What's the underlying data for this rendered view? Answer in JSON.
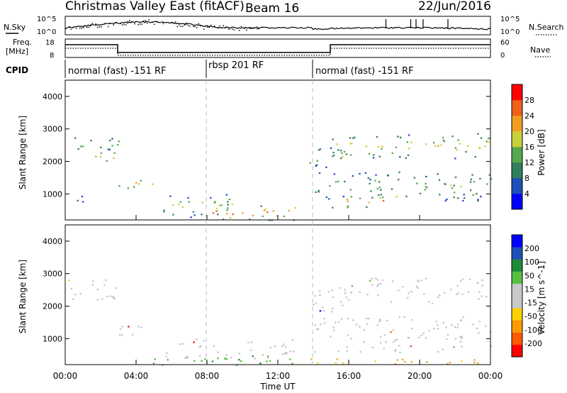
{
  "header": {
    "title": "Christmas Valley East (fitACF)",
    "beam": "Beam 16",
    "date": "22/Jun/2016"
  },
  "noise_panel": {
    "left_label": "N.Sky",
    "right_label": "N.Search",
    "left_ticks": [
      "10^5",
      "10^0"
    ],
    "right_ticks": [
      "10^5",
      "10^0"
    ]
  },
  "freq_panel": {
    "left_label_1": "Freq.",
    "left_label_2": "[MHz]",
    "right_label": "Nave",
    "left_ticks": [
      "18",
      "8"
    ],
    "right_ticks": [
      "60",
      "0"
    ]
  },
  "cpid": {
    "label": "CPID",
    "segments": [
      {
        "text": "normal (fast) -151 RF"
      },
      {
        "text": "rbsp 201 RF"
      },
      {
        "text": "normal (fast) -151 RF"
      }
    ]
  },
  "colors": {
    "power_scale": [
      "#0000ff",
      "#1f4fb8",
      "#2f7f5f",
      "#55a84f",
      "#c8d13a",
      "#f0a020",
      "#f06018",
      "#ff0000"
    ],
    "velocity_scale": [
      "#ff0000",
      "#ff5a00",
      "#ff9a00",
      "#ffd000",
      "#c8c8c8",
      "#c8c8c8",
      "#55c040",
      "#1e8a3a",
      "#1f4fb8",
      "#0000ff"
    ],
    "velocity_main": "#c4c4c4",
    "velocity_green": "#4fbf3a",
    "velocity_orange": "#f0a030"
  },
  "chart_data": [
    {
      "type": "heatmap",
      "name": "Power",
      "xlabel": "",
      "ylabel": "Slant Range [km]",
      "yticks": [
        "1000",
        "2000",
        "3000",
        "4000"
      ],
      "ylim": [
        200,
        4500
      ],
      "colorbar_label": "Power [dB]",
      "colorbar_ticks": [
        "28",
        "24",
        "20",
        "16",
        "12",
        "8",
        "4"
      ],
      "echo_bands": [
        {
          "t_start": 0.0,
          "t_end": 3.0,
          "range_start": 2300,
          "range_end": 2800,
          "level_db": 16
        },
        {
          "t_start": 1.3,
          "t_end": 3.0,
          "range_start": 2000,
          "range_end": 2400,
          "level_db": 24
        },
        {
          "t_start": 3.0,
          "t_end": 5.0,
          "range_start": 1150,
          "range_end": 1550,
          "level_db": 22
        },
        {
          "t_start": 0.0,
          "t_end": 1.0,
          "range_start": 700,
          "range_end": 1100,
          "level_db": 14
        },
        {
          "t_start": 5.5,
          "t_end": 10.0,
          "range_start": 300,
          "range_end": 1000,
          "level_db": 18
        },
        {
          "t_start": 7.0,
          "t_end": 13.0,
          "range_start": 200,
          "range_end": 700,
          "level_db": 26
        },
        {
          "t_start": 13.7,
          "t_end": 15.7,
          "range_start": 1800,
          "range_end": 2500,
          "level_db": 18
        },
        {
          "t_start": 15.0,
          "t_end": 24.0,
          "range_start": 2100,
          "range_end": 2900,
          "level_db": 20
        },
        {
          "t_start": 14.0,
          "t_end": 24.0,
          "range_start": 800,
          "range_end": 1700,
          "level_db": 16
        },
        {
          "t_start": 15.0,
          "t_end": 19.0,
          "range_start": 600,
          "range_end": 1000,
          "level_db": 26
        }
      ]
    },
    {
      "type": "heatmap",
      "name": "Velocity",
      "xlabel": "Time UT",
      "ylabel": "Slant Range [km]",
      "yticks": [
        "1000",
        "2000",
        "3000",
        "4000"
      ],
      "ylim": [
        200,
        4500
      ],
      "xticks": [
        "00:00",
        "04:00",
        "08:00",
        "12:00",
        "16:00",
        "20:00",
        "00:00"
      ],
      "xlim": [
        0,
        24
      ],
      "colorbar_label": "Velocity [m s^-1]",
      "colorbar_ticks": [
        "200",
        "100",
        "50",
        "15",
        "-15",
        "-50",
        "-100",
        "-200"
      ],
      "echo_bands": [
        {
          "t_start": 0.0,
          "t_end": 3.0,
          "range_start": 2200,
          "range_end": 2900,
          "velocity": 0
        },
        {
          "t_start": 3.0,
          "t_end": 5.5,
          "range_start": 1100,
          "range_end": 1500,
          "velocity": 0
        },
        {
          "t_start": 5.5,
          "t_end": 13.0,
          "range_start": 400,
          "range_end": 1000,
          "velocity": 0
        },
        {
          "t_start": 4.5,
          "t_end": 13.0,
          "range_start": 200,
          "range_end": 500,
          "velocity": 30
        },
        {
          "t_start": 13.0,
          "t_end": 24.0,
          "range_start": 200,
          "range_end": 400,
          "velocity": -40
        },
        {
          "t_start": 15.0,
          "t_end": 24.0,
          "range_start": 2100,
          "range_end": 2900,
          "velocity": 0
        },
        {
          "t_start": 14.0,
          "t_end": 24.0,
          "range_start": 600,
          "range_end": 1700,
          "velocity": 0
        },
        {
          "t_start": 13.7,
          "t_end": 15.7,
          "range_start": 1800,
          "range_end": 2500,
          "velocity": 0
        }
      ]
    }
  ]
}
